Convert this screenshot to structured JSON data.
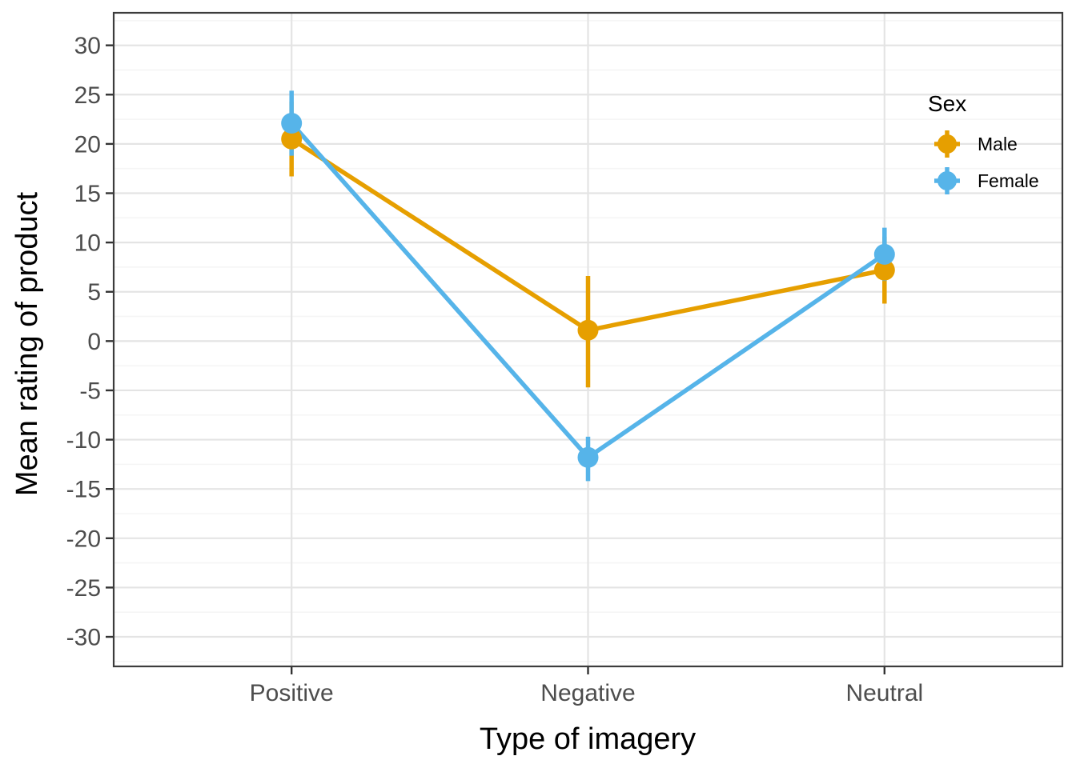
{
  "figure": {
    "background": "#FFFFFF"
  },
  "chart_data": {
    "type": "line",
    "subtype": "interaction-plot-with-error-bars",
    "title": "",
    "xlabel": "Type of imagery",
    "ylabel": "Mean rating of product",
    "categories": [
      "Positive",
      "Negative",
      "Neutral"
    ],
    "series": [
      {
        "name": "Male",
        "color": "#E69F00",
        "values": [
          20.5,
          1.1,
          7.2
        ],
        "ci_low": [
          16.7,
          -4.7,
          3.8
        ],
        "ci_high": [
          24.3,
          6.6,
          10.6
        ]
      },
      {
        "name": "Female",
        "color": "#56B4E9",
        "values": [
          22.1,
          -11.8,
          8.8
        ],
        "ci_low": [
          18.8,
          -14.2,
          6.1
        ],
        "ci_high": [
          25.4,
          -9.7,
          11.5
        ]
      }
    ],
    "legend": {
      "title": "Sex",
      "entries": [
        "Male",
        "Female"
      ],
      "position": "inside-top-right"
    },
    "y_axis": {
      "ticks": [
        30,
        25,
        20,
        15,
        10,
        5,
        0,
        -5,
        -10,
        -15,
        -20,
        -25,
        -30
      ],
      "minor_step": 2.5,
      "ylim": [
        -33.0,
        33.3
      ]
    },
    "x_axis": {
      "tick_labels": [
        "Positive",
        "Negative",
        "Neutral"
      ]
    },
    "grid": {
      "major": "on",
      "minor": "on",
      "vertical_major": "per-category"
    },
    "marker": "point-with-vertical-error-bar"
  },
  "style": {
    "axis_text_color": "#4D4D4D",
    "axis_title_color": "#000000",
    "grid_major_color": "#E4E4E4",
    "grid_minor_color": "#F5F5F5",
    "panel_border_color": "#3C3C3C",
    "tick_mark_color": "#333333",
    "legend_text_color": "#000000",
    "panel_background": "#FFFFFF"
  }
}
